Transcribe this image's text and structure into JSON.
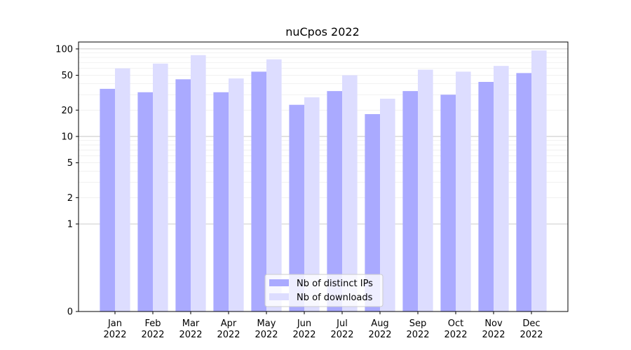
{
  "chart_data": {
    "type": "bar",
    "title": "nuCpos 2022",
    "xlabel": "",
    "ylabel": "",
    "yscale": "symlog",
    "ylim": [
      0,
      120
    ],
    "y_ticks": [
      0,
      1,
      2,
      5,
      10,
      20,
      50,
      100
    ],
    "categories": [
      "Jan\n2022",
      "Feb\n2022",
      "Mar\n2022",
      "Apr\n2022",
      "May\n2022",
      "Jun\n2022",
      "Jul\n2022",
      "Aug\n2022",
      "Sep\n2022",
      "Oct\n2022",
      "Nov\n2022",
      "Dec\n2022"
    ],
    "series": [
      {
        "name": "Nb of distinct IPs",
        "color": "#aaaaff",
        "values": [
          35,
          32,
          45,
          32,
          55,
          23,
          33,
          18,
          33,
          30,
          42,
          53
        ]
      },
      {
        "name": "Nb of downloads",
        "color": "#ddddff",
        "values": [
          60,
          68,
          85,
          46,
          76,
          28,
          50,
          27,
          58,
          55,
          64,
          96
        ]
      }
    ],
    "grid": true,
    "legend_position": "bottom-center"
  }
}
